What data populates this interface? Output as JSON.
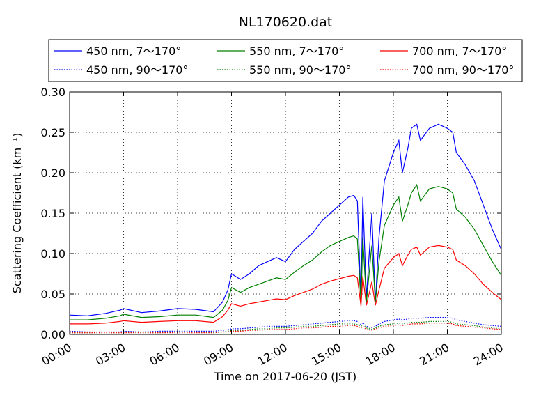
{
  "chart_data": {
    "type": "line",
    "title": "NL170620.dat",
    "xlabel": "Time on 2017-06-20 (JST)",
    "ylabel": "Scattering Coefficient (km⁻¹)",
    "x_unit": "hours",
    "xlim": [
      0,
      24
    ],
    "ylim": [
      0,
      0.3
    ],
    "grid": true,
    "legend_placement": "top, above plot, 3 columns",
    "x_ticks": [
      "00:00",
      "03:00",
      "06:00",
      "09:00",
      "12:00",
      "15:00",
      "18:00",
      "21:00",
      "24:00"
    ],
    "y_ticks": [
      "0.00",
      "0.05",
      "0.10",
      "0.15",
      "0.20",
      "0.25",
      "0.30"
    ],
    "x": [
      0,
      1,
      2,
      2.8,
      3,
      4,
      5,
      6,
      7,
      8,
      8.5,
      8.8,
      9,
      9.5,
      10,
      10.5,
      11,
      11.5,
      12,
      12.5,
      13,
      13.5,
      14,
      14.5,
      15,
      15.5,
      15.8,
      16,
      16.2,
      16.3,
      16.5,
      16.8,
      17,
      17.2,
      17.5,
      18,
      18.3,
      18.5,
      18.8,
      19,
      19.3,
      19.5,
      20,
      20.5,
      21,
      21.3,
      21.5,
      22,
      22.5,
      23,
      23.5,
      24
    ],
    "series": [
      {
        "name": "450 nm, 7～170°",
        "color": "#0000ff",
        "style": "solid",
        "values": [
          0.024,
          0.023,
          0.026,
          0.03,
          0.032,
          0.027,
          0.029,
          0.032,
          0.031,
          0.028,
          0.04,
          0.055,
          0.075,
          0.068,
          0.075,
          0.085,
          0.09,
          0.095,
          0.09,
          0.105,
          0.115,
          0.125,
          0.14,
          0.15,
          0.16,
          0.17,
          0.172,
          0.165,
          0.04,
          0.17,
          0.045,
          0.15,
          0.04,
          0.12,
          0.19,
          0.225,
          0.24,
          0.2,
          0.23,
          0.255,
          0.26,
          0.24,
          0.255,
          0.26,
          0.255,
          0.25,
          0.225,
          0.21,
          0.19,
          0.16,
          0.13,
          0.105
        ]
      },
      {
        "name": "550 nm, 7～170°",
        "color": "#008000",
        "style": "solid",
        "values": [
          0.018,
          0.018,
          0.02,
          0.023,
          0.025,
          0.021,
          0.022,
          0.024,
          0.024,
          0.021,
          0.03,
          0.042,
          0.058,
          0.052,
          0.058,
          0.062,
          0.066,
          0.07,
          0.068,
          0.077,
          0.085,
          0.092,
          0.102,
          0.11,
          0.115,
          0.12,
          0.122,
          0.118,
          0.038,
          0.12,
          0.04,
          0.11,
          0.04,
          0.09,
          0.135,
          0.16,
          0.17,
          0.14,
          0.16,
          0.175,
          0.185,
          0.165,
          0.18,
          0.183,
          0.18,
          0.175,
          0.155,
          0.145,
          0.13,
          0.11,
          0.09,
          0.073
        ]
      },
      {
        "name": "700 nm, 7～170°",
        "color": "#ff0000",
        "style": "solid",
        "values": [
          0.013,
          0.013,
          0.014,
          0.016,
          0.017,
          0.015,
          0.016,
          0.017,
          0.017,
          0.015,
          0.022,
          0.03,
          0.038,
          0.035,
          0.038,
          0.04,
          0.042,
          0.044,
          0.043,
          0.048,
          0.052,
          0.056,
          0.062,
          0.066,
          0.069,
          0.072,
          0.073,
          0.07,
          0.035,
          0.072,
          0.036,
          0.065,
          0.036,
          0.055,
          0.082,
          0.095,
          0.1,
          0.085,
          0.098,
          0.105,
          0.108,
          0.098,
          0.108,
          0.11,
          0.108,
          0.105,
          0.092,
          0.085,
          0.075,
          0.062,
          0.052,
          0.043
        ]
      },
      {
        "name": "450 nm, 90～170°",
        "color": "#0000ff",
        "style": "dotted",
        "values": [
          0.004,
          0.003,
          0.003,
          0.003,
          0.004,
          0.003,
          0.004,
          0.004,
          0.004,
          0.004,
          0.005,
          0.006,
          0.007,
          0.007,
          0.008,
          0.009,
          0.01,
          0.01,
          0.01,
          0.011,
          0.012,
          0.013,
          0.014,
          0.015,
          0.016,
          0.017,
          0.017,
          0.016,
          0.012,
          0.015,
          0.01,
          0.008,
          0.01,
          0.013,
          0.016,
          0.018,
          0.019,
          0.018,
          0.019,
          0.02,
          0.02,
          0.02,
          0.021,
          0.021,
          0.021,
          0.02,
          0.018,
          0.016,
          0.014,
          0.012,
          0.011,
          0.01
        ]
      },
      {
        "name": "550 nm, 90～170°",
        "color": "#008000",
        "style": "dotted",
        "values": [
          0.002,
          0.002,
          0.002,
          0.002,
          0.003,
          0.002,
          0.002,
          0.003,
          0.003,
          0.002,
          0.003,
          0.004,
          0.005,
          0.005,
          0.006,
          0.007,
          0.007,
          0.008,
          0.008,
          0.009,
          0.01,
          0.01,
          0.011,
          0.012,
          0.013,
          0.013,
          0.013,
          0.012,
          0.01,
          0.012,
          0.008,
          0.006,
          0.008,
          0.01,
          0.012,
          0.013,
          0.014,
          0.013,
          0.014,
          0.015,
          0.015,
          0.015,
          0.016,
          0.016,
          0.016,
          0.015,
          0.013,
          0.012,
          0.011,
          0.009,
          0.008,
          0.007
        ]
      },
      {
        "name": "700 nm, 90～170°",
        "color": "#ff0000",
        "style": "dotted",
        "values": [
          0.002,
          0.002,
          0.002,
          0.002,
          0.002,
          0.002,
          0.002,
          0.002,
          0.002,
          0.002,
          0.003,
          0.003,
          0.004,
          0.004,
          0.005,
          0.005,
          0.006,
          0.006,
          0.006,
          0.007,
          0.008,
          0.008,
          0.009,
          0.01,
          0.01,
          0.011,
          0.011,
          0.01,
          0.008,
          0.01,
          0.006,
          0.005,
          0.007,
          0.008,
          0.01,
          0.011,
          0.012,
          0.011,
          0.012,
          0.013,
          0.013,
          0.013,
          0.014,
          0.014,
          0.014,
          0.013,
          0.011,
          0.01,
          0.009,
          0.008,
          0.007,
          0.006
        ]
      }
    ],
    "legend_order": [
      0,
      1,
      2,
      3,
      4,
      5
    ]
  }
}
